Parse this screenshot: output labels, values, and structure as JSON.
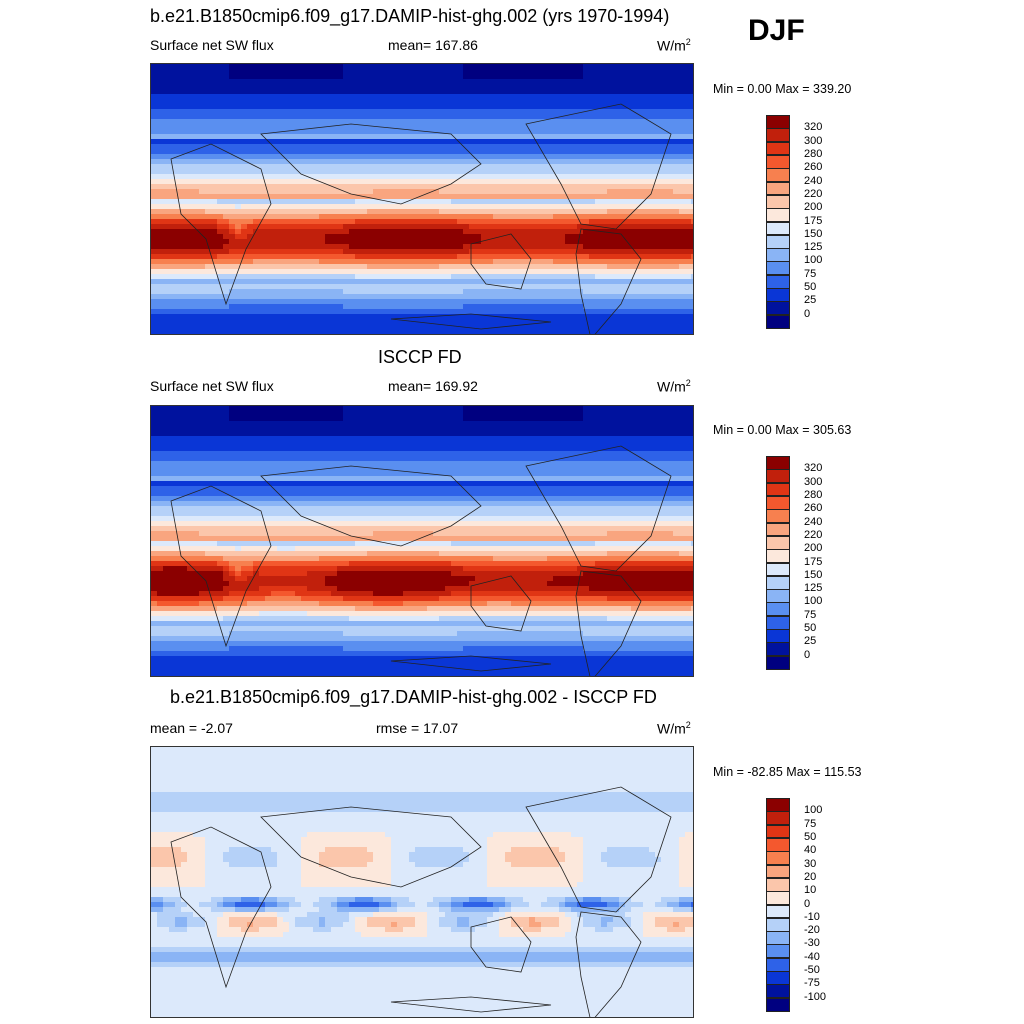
{
  "season": "DJF",
  "panels": [
    {
      "title": "b.e21.B1850cmip6.f09_g17.DAMIP-hist-ghg.002 (yrs 1970-1994)",
      "left_label": "Surface net SW flux",
      "center_label": "mean= 167.86",
      "units_base": "W/m",
      "units_exp": "2",
      "minmax": "Min =   0.00 Max = 339.20",
      "colorbar": {
        "labels": [
          "320",
          "300",
          "280",
          "260",
          "240",
          "220",
          "200",
          "175",
          "150",
          "125",
          "100",
          "75",
          "50",
          "25",
          "0"
        ],
        "colors": [
          "#8b0000",
          "#c1200c",
          "#e03515",
          "#f4582e",
          "#f7804f",
          "#f9a57f",
          "#fbc6ab",
          "#fce8dc",
          "#dce9fb",
          "#b5d1f8",
          "#8ab4f5",
          "#5a8ff0",
          "#2e62e8",
          "#0a36d6",
          "#00129e",
          "#000080"
        ]
      },
      "map_field": "model"
    },
    {
      "title": "ISCCP FD",
      "left_label": "Surface net SW flux",
      "center_label": "mean= 169.92",
      "units_base": "W/m",
      "units_exp": "2",
      "minmax": "Min =   0.00 Max = 305.63",
      "colorbar": {
        "labels": [
          "320",
          "300",
          "280",
          "260",
          "240",
          "220",
          "200",
          "175",
          "150",
          "125",
          "100",
          "75",
          "50",
          "25",
          "0"
        ],
        "colors": [
          "#8b0000",
          "#c1200c",
          "#e03515",
          "#f4582e",
          "#f7804f",
          "#f9a57f",
          "#fbc6ab",
          "#fce8dc",
          "#dce9fb",
          "#b5d1f8",
          "#8ab4f5",
          "#5a8ff0",
          "#2e62e8",
          "#0a36d6",
          "#00129e",
          "#000080"
        ]
      },
      "map_field": "obs"
    },
    {
      "title": "b.e21.B1850cmip6.f09_g17.DAMIP-hist-ghg.002 - ISCCP FD",
      "left_label": "mean =  -2.07",
      "center_label": "rmse =  17.07",
      "units_base": "W/m",
      "units_exp": "2",
      "minmax": "Min = -82.85 Max = 115.53",
      "colorbar": {
        "labels": [
          "100",
          "75",
          "50",
          "40",
          "30",
          "20",
          "10",
          "0",
          "-10",
          "-20",
          "-30",
          "-40",
          "-50",
          "-75",
          "-100"
        ],
        "colors": [
          "#8b0000",
          "#c1200c",
          "#e03515",
          "#f4582e",
          "#f7804f",
          "#f9a57f",
          "#fbc6ab",
          "#fce8dc",
          "#dce9fb",
          "#b5d1f8",
          "#8ab4f5",
          "#5a8ff0",
          "#2e62e8",
          "#0a36d6",
          "#00129e",
          "#000080"
        ]
      },
      "map_field": "diff"
    }
  ]
}
